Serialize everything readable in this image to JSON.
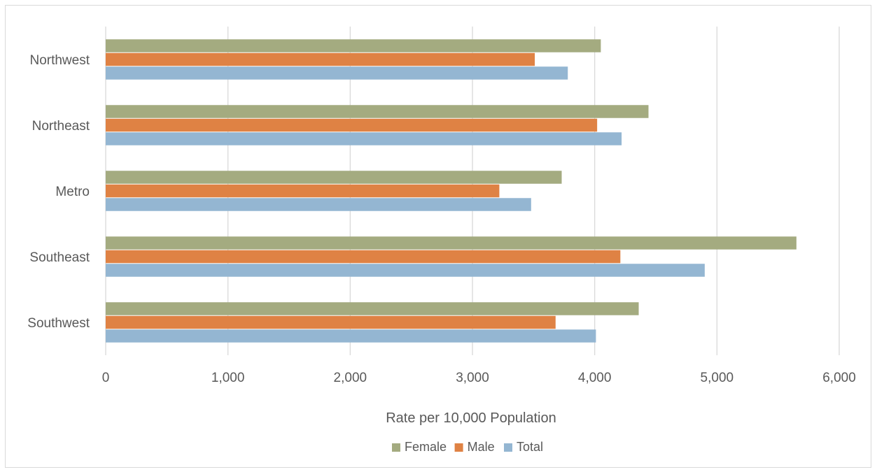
{
  "chart_data": {
    "type": "bar",
    "orientation": "horizontal",
    "categories": [
      "Northwest",
      "Northeast",
      "Metro",
      "Southeast",
      "Southwest"
    ],
    "series": [
      {
        "name": "Female",
        "color": "#a4ab80",
        "values": [
          4050,
          4440,
          3730,
          5650,
          4360
        ]
      },
      {
        "name": "Male",
        "color": "#df8244",
        "values": [
          3510,
          4020,
          3220,
          4210,
          3680
        ]
      },
      {
        "name": "Total",
        "color": "#94b6d2",
        "values": [
          3780,
          4220,
          3480,
          4900,
          4010
        ]
      }
    ],
    "xlabel": "Rate per 10,000 Population",
    "ylabel": "",
    "xlim": [
      0,
      6000
    ],
    "xticks": [
      "0",
      "1,000",
      "2,000",
      "3,000",
      "4,000",
      "5,000",
      "6,000"
    ],
    "grid": true,
    "legend_position": "bottom"
  }
}
